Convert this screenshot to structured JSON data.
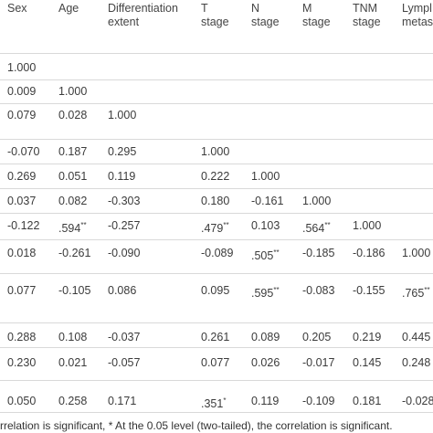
{
  "header": {
    "cols": [
      {
        "label": "Sex"
      },
      {
        "label": "Age"
      },
      {
        "label": "Differentiation\nextent"
      },
      {
        "label": "T\nstage"
      },
      {
        "label": "N\nstage"
      },
      {
        "label": "M\nstage"
      },
      {
        "label": "TNM\nstage"
      },
      {
        "label": "Lympl\nmetas"
      }
    ]
  },
  "rows": [
    [
      {
        "v": "1.000"
      }
    ],
    [
      {
        "v": "0.009"
      },
      {
        "v": "1.000"
      }
    ],
    [
      {
        "v": "0.079"
      },
      {
        "v": "0.028"
      },
      {
        "v": "1.000"
      }
    ],
    [
      {
        "v": "-0.070"
      },
      {
        "v": "0.187"
      },
      {
        "v": "0.295"
      },
      {
        "v": "1.000"
      }
    ],
    [
      {
        "v": "0.269"
      },
      {
        "v": "0.051"
      },
      {
        "v": "0.119"
      },
      {
        "v": "0.222"
      },
      {
        "v": "1.000"
      }
    ],
    [
      {
        "v": "0.037"
      },
      {
        "v": "0.082"
      },
      {
        "v": "-0.303"
      },
      {
        "v": "0.180"
      },
      {
        "v": "-0.161"
      },
      {
        "v": "1.000"
      }
    ],
    [
      {
        "v": "-0.122"
      },
      {
        "v": ".594",
        "s": "**"
      },
      {
        "v": "-0.257"
      },
      {
        "v": ".479",
        "s": "**"
      },
      {
        "v": "0.103"
      },
      {
        "v": ".564",
        "s": "**"
      },
      {
        "v": "1.000"
      }
    ],
    [
      {
        "v": "0.018"
      },
      {
        "v": "-0.261"
      },
      {
        "v": "-0.090"
      },
      {
        "v": "-0.089"
      },
      {
        "v": ".505",
        "s": "**"
      },
      {
        "v": "-0.185"
      },
      {
        "v": "-0.186"
      },
      {
        "v": "1.000"
      }
    ],
    [
      {
        "v": "0.077"
      },
      {
        "v": "-0.105"
      },
      {
        "v": "0.086"
      },
      {
        "v": "0.095"
      },
      {
        "v": ".595",
        "s": "**"
      },
      {
        "v": "-0.083"
      },
      {
        "v": "-0.155"
      },
      {
        "v": ".765",
        "s": "**"
      }
    ],
    [
      {
        "v": "0.288"
      },
      {
        "v": "0.108"
      },
      {
        "v": "-0.037"
      },
      {
        "v": "0.261"
      },
      {
        "v": "0.089"
      },
      {
        "v": "0.205"
      },
      {
        "v": "0.219"
      },
      {
        "v": "0.445"
      }
    ],
    [
      {
        "v": "0.230"
      },
      {
        "v": "0.021"
      },
      {
        "v": "-0.057"
      },
      {
        "v": "0.077"
      },
      {
        "v": "0.026"
      },
      {
        "v": "-0.017"
      },
      {
        "v": "0.145"
      },
      {
        "v": "0.248"
      }
    ],
    [
      {
        "v": "0.050"
      },
      {
        "v": "0.258"
      },
      {
        "v": "0.171"
      },
      {
        "v": ".351",
        "s": "*"
      },
      {
        "v": "0.119"
      },
      {
        "v": "-0.109"
      },
      {
        "v": "0.181"
      },
      {
        "v": "-0.028"
      }
    ]
  ],
  "footer": {
    "note": "rrelation is significant, * At the 0.05 level (two-tailed), the correlation is significant."
  }
}
